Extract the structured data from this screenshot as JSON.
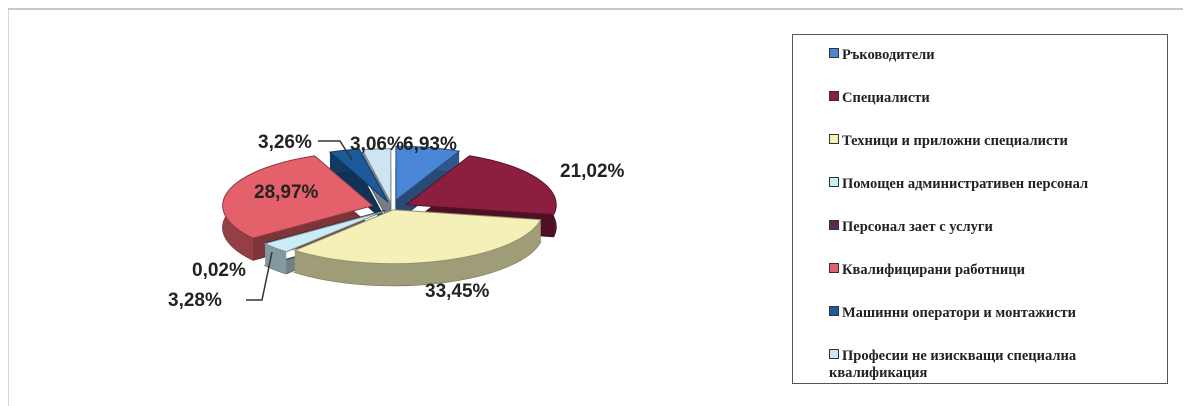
{
  "chart_data": {
    "type": "pie",
    "title": "",
    "labels": [
      "Ръководители",
      "Специалисти",
      "Техници и приложни специалисти",
      "Помощен административен персонал",
      "Персонал зает с услуги",
      "Квалифицирани работници",
      "Машинни оператори и монтажисти",
      "Професии не изискващи специална квалификация"
    ],
    "values": [
      6.93,
      21.02,
      33.45,
      3.28,
      0.02,
      28.97,
      3.26,
      3.06
    ],
    "value_labels": [
      "6,93%",
      "21,02%",
      "33,45%",
      "3,28%",
      "0,02%",
      "28,97%",
      "3,26%",
      "3,06%"
    ],
    "colors": [
      "#4a86d6",
      "#8c1f3f",
      "#f4f0b8",
      "#c9ecf6",
      "#5c2a50",
      "#e4606a",
      "#1c5a9a",
      "#cfe4f2"
    ],
    "legend_position": "right",
    "style": "3d-exploded"
  }
}
